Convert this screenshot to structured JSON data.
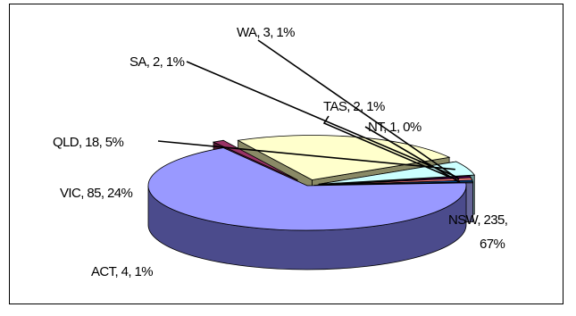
{
  "chart_data": {
    "type": "pie",
    "variant": "3d-exploded",
    "legend": "none",
    "slices": [
      {
        "label": "NSW, 235, 67%",
        "name": "NSW",
        "value": 235,
        "percent": "67%",
        "color": "#9999ff",
        "side": "#4b4b8c"
      },
      {
        "label": "ACT, 4, 1%",
        "name": "ACT",
        "value": 4,
        "percent": "1%",
        "color": "#993366",
        "side": "#551a35"
      },
      {
        "label": "VIC, 85, 24%",
        "name": "VIC",
        "value": 85,
        "percent": "24%",
        "color": "#ffffcc",
        "side": "#8a8a66"
      },
      {
        "label": "QLD, 18, 5%",
        "name": "QLD",
        "value": 18,
        "percent": "5%",
        "color": "#ccffff",
        "side": "#6a9090"
      },
      {
        "label": "SA, 2, 1%",
        "name": "SA",
        "value": 2,
        "percent": "1%",
        "color": "#660066",
        "side": "#330033"
      },
      {
        "label": "WA, 3, 1%",
        "name": "WA",
        "value": 3,
        "percent": "1%",
        "color": "#ff8080",
        "side": "#993030"
      },
      {
        "label": "TAS, 2, 1%",
        "name": "TAS",
        "value": 2,
        "percent": "1%",
        "color": "#0066cc",
        "side": "#003366"
      },
      {
        "label": "NT, 1, 0%",
        "name": "NT",
        "value": 1,
        "percent": "0%",
        "color": "#ccccff",
        "side": "#666699"
      }
    ]
  }
}
